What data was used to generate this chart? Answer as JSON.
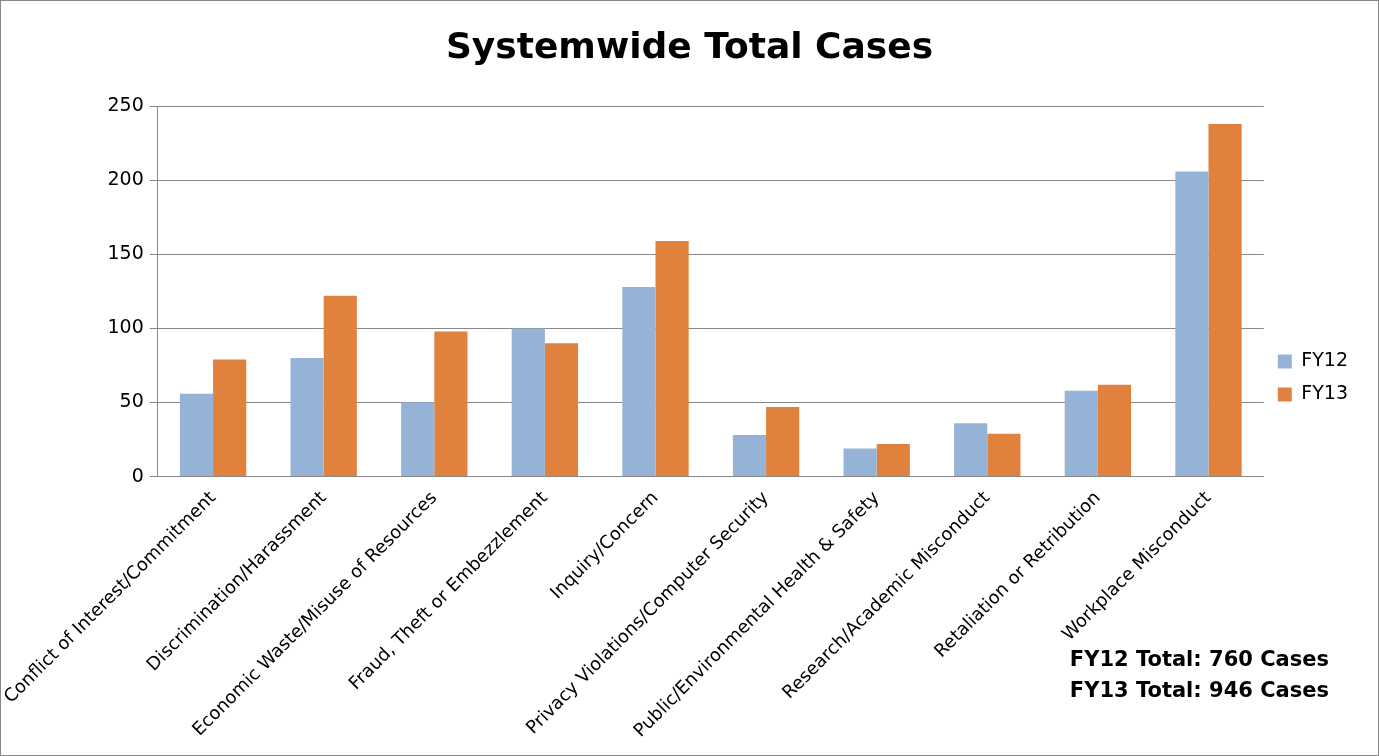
{
  "chart_data": {
    "type": "bar",
    "title": "Systemwide Total Cases",
    "categories": [
      "Conflict of Interest/Commitment",
      "Discrimination/Harassment",
      "Economic Waste/Misuse of Resources",
      "Fraud, Theft or Embezzlement",
      "Inquiry/Concern",
      "Privacy Violations/Computer Security",
      "Public/Environmental Health & Safety",
      "Research/Academic Misconduct",
      "Retaliation or Retribution",
      "Workplace Misconduct"
    ],
    "series": [
      {
        "name": "FY12",
        "color": "#95b3d7",
        "values": [
          56,
          80,
          50,
          100,
          128,
          28,
          19,
          36,
          58,
          206
        ]
      },
      {
        "name": "FY13",
        "color": "#e0823d",
        "values": [
          79,
          122,
          98,
          90,
          159,
          47,
          22,
          29,
          62,
          238
        ]
      }
    ],
    "ylim": [
      0,
      250
    ],
    "yticks": [
      0,
      50,
      100,
      150,
      200,
      250
    ],
    "grid": "y",
    "legend": "right",
    "annotations": [
      "FY12 Total: 760 Cases",
      "FY13 Total: 946 Cases"
    ]
  }
}
